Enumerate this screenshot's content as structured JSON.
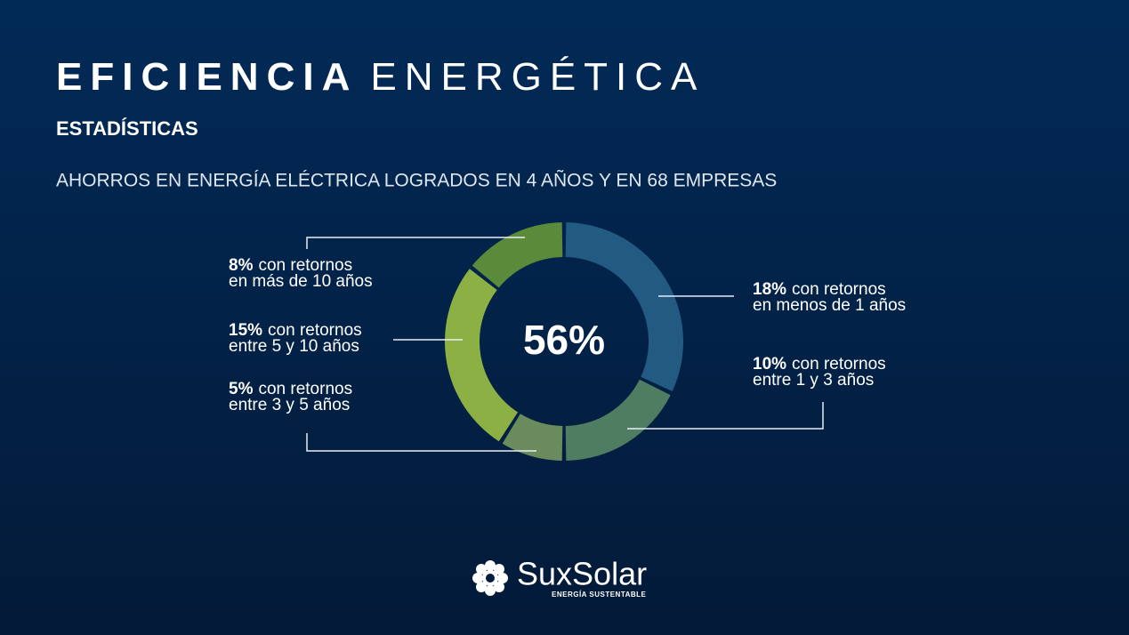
{
  "header": {
    "title_bold": "EFICIENCIA",
    "title_light": "ENERGÉTICA",
    "subtitle": "ESTADÍSTICAS",
    "description": "AHORROS EN ENERGÍA ELÉCTRICA LOGRADOS EN 4 AÑOS Y EN 68 EMPRESAS"
  },
  "chart_data": {
    "type": "donut",
    "center_label": "56%",
    "values": [
      18,
      10,
      5,
      15,
      8
    ],
    "value_labels": [
      "18%",
      "10%",
      "5%",
      "15%",
      "8%"
    ],
    "label_lines": [
      [
        "con retornos",
        "en menos de 1 años"
      ],
      [
        "con retornos",
        "entre 1 y 3 años"
      ],
      [
        "con retornos",
        "entre 3 y 5 años"
      ],
      [
        "con retornos",
        "entre 5 y 10 años"
      ],
      [
        "con retornos",
        "en más de 10 años"
      ]
    ],
    "colors": [
      "#235a82",
      "#4f7d62",
      "#6a8c5c",
      "#8db044",
      "#5b8a3a"
    ]
  },
  "footer": {
    "brand": "SuxSolar",
    "tagline": "ENERGÍA SUSTENTABLE"
  }
}
